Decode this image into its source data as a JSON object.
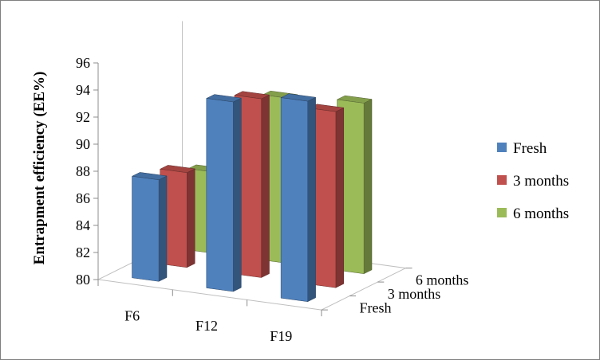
{
  "chart_data": {
    "type": "bar",
    "subtype": "3d-clustered-column",
    "categories": [
      "F6",
      "F12",
      "F19"
    ],
    "series": [
      {
        "name": "Fresh",
        "color": "#4f81bd",
        "values": [
          87.5,
          94.0,
          94.8
        ]
      },
      {
        "name": "3 months",
        "color": "#c0504d",
        "values": [
          87.0,
          93.2,
          93.0
        ]
      },
      {
        "name": "6 months",
        "color": "#9bbb59",
        "values": [
          86.0,
          92.2,
          92.6
        ]
      }
    ],
    "ylabel": "Entrapment efficiency (EE%)",
    "ylim": [
      80,
      96
    ],
    "yticks": [
      "80",
      "82",
      "84",
      "86",
      "88",
      "90",
      "92",
      "94",
      "96"
    ],
    "depth_labels": [
      "Fresh",
      "3 months",
      "6 months"
    ],
    "grid": false,
    "legend": {
      "position": "right",
      "items": [
        "Fresh",
        "3 months",
        "6 months"
      ]
    }
  }
}
